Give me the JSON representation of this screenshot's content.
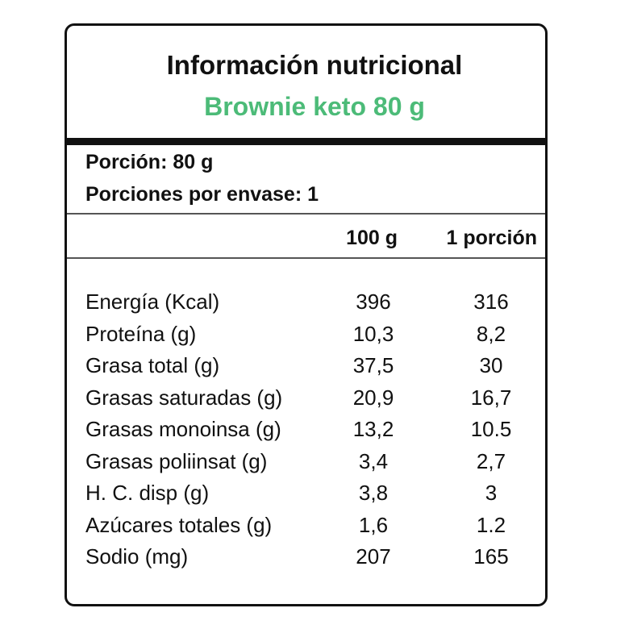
{
  "header": {
    "title": "Información nutricional",
    "subtitle": "Brownie keto 80 g"
  },
  "serving": {
    "size": "Porción: 80 g",
    "per_container": "Porciones por envase: 1"
  },
  "table": {
    "columns": [
      "100 g",
      "1 porción"
    ],
    "rows": [
      [
        "Energía (Kcal)",
        "396",
        "316"
      ],
      [
        "Proteína (g)",
        "10,3",
        "8,2"
      ],
      [
        "Grasa total (g)",
        "37,5",
        "30"
      ],
      [
        "Grasas saturadas (g)",
        "20,9",
        "16,7"
      ],
      [
        "Grasas monoinsa (g)",
        "13,2",
        "10.5"
      ],
      [
        "Grasas poliinsat (g)",
        "3,4",
        "2,7"
      ],
      [
        "H. C. disp (g)",
        "3,8",
        "3"
      ],
      [
        "Azúcares totales (g)",
        "1,6",
        "1.2"
      ],
      [
        "Sodio (mg)",
        "207",
        "165"
      ]
    ]
  }
}
